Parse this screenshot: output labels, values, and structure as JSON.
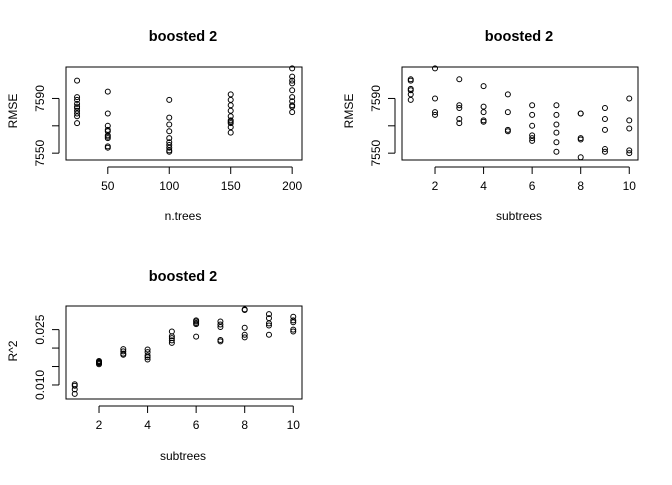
{
  "chart_data": [
    {
      "type": "scatter",
      "title": "boosted 2",
      "xlabel": "n.trees",
      "ylabel": "RMSE",
      "xlim": [
        16,
        208
      ],
      "ylim": [
        7545,
        7613
      ],
      "xticks": [
        50,
        100,
        150,
        200
      ],
      "yticks": [
        7550,
        7570,
        7590
      ],
      "ytick_labels": [
        "7550",
        "",
        "7590"
      ],
      "series": [
        {
          "x": [
            25,
            25,
            25,
            25,
            25,
            25,
            25,
            25,
            25,
            25,
            50,
            50,
            50,
            50,
            50,
            50,
            50,
            50,
            50,
            50,
            100,
            100,
            100,
            100,
            100,
            100,
            100,
            100,
            100,
            100,
            150,
            150,
            150,
            150,
            150,
            150,
            150,
            150,
            150,
            150,
            200,
            200,
            200,
            200,
            200,
            200,
            200,
            200,
            200,
            200
          ],
          "y": [
            7603,
            7591,
            7586,
            7584,
            7581,
            7579,
            7577,
            7572,
            7589,
            7583,
            7595,
            7579,
            7570,
            7566,
            7563,
            7561,
            7555,
            7554,
            7562,
            7567,
            7589,
            7576,
            7571,
            7566,
            7561,
            7556,
            7554,
            7551,
            7558,
            7552,
            7593,
            7589,
            7585,
            7581,
            7577,
            7573,
            7569,
            7565,
            7572,
            7574,
            7612,
            7606,
            7601,
            7596,
            7591,
            7588,
            7584,
            7580,
            7603,
            7585
          ]
        }
      ]
    },
    {
      "type": "scatter",
      "title": "boosted 2",
      "xlabel": "subtrees",
      "ylabel": "RMSE",
      "xlim": [
        0.64,
        10.36
      ],
      "ylim": [
        7545,
        7613
      ],
      "xticks": [
        2,
        4,
        6,
        8,
        10
      ],
      "yticks": [
        7550,
        7570,
        7590
      ],
      "ytick_labels": [
        "7550",
        "",
        "7590"
      ],
      "series": [
        {
          "x": [
            1,
            1,
            1,
            1,
            1,
            1,
            2,
            2,
            2,
            2,
            3,
            3,
            3,
            3,
            3,
            4,
            4,
            4,
            4,
            4,
            5,
            5,
            5,
            5,
            6,
            6,
            6,
            6,
            6,
            6,
            7,
            7,
            7,
            7,
            7,
            7,
            8,
            8,
            8,
            8,
            8,
            9,
            9,
            9,
            9,
            9,
            10,
            10,
            10,
            10,
            10
          ],
          "y": [
            7603,
            7597,
            7593,
            7589,
            7604,
            7596,
            7612,
            7590,
            7580,
            7578,
            7604,
            7585,
            7583,
            7575,
            7572,
            7599,
            7584,
            7580,
            7574,
            7573,
            7593,
            7580,
            7567,
            7566,
            7585,
            7578,
            7570,
            7563,
            7559,
            7561,
            7585,
            7578,
            7571,
            7565,
            7558,
            7551,
            7579,
            7579,
            7561,
            7560,
            7547,
            7583,
            7575,
            7567,
            7553,
            7551,
            7590,
            7574,
            7568,
            7552,
            7550
          ]
        }
      ]
    },
    {
      "type": "scatter",
      "title": "boosted 2",
      "xlabel": "subtrees",
      "ylabel": "R^2",
      "xlim": [
        0.64,
        10.36
      ],
      "ylim": [
        0.0062,
        0.0314
      ],
      "xticks": [
        2,
        4,
        6,
        8,
        10
      ],
      "yticks": [
        0.01,
        0.015,
        0.02,
        0.025
      ],
      "ytick_labels": [
        "0.010",
        "",
        "",
        "0.025"
      ],
      "series": [
        {
          "x": [
            1,
            1,
            1,
            1,
            2,
            2,
            2,
            2,
            2,
            3,
            3,
            3,
            3,
            4,
            4,
            4,
            4,
            4,
            5,
            5,
            5,
            5,
            5,
            6,
            6,
            6,
            6,
            6,
            7,
            7,
            7,
            7,
            7,
            8,
            8,
            8,
            8,
            8,
            9,
            9,
            9,
            9,
            9,
            10,
            10,
            10,
            10,
            10
          ],
          "y": [
            0.0102,
            0.0098,
            0.0088,
            0.0076,
            0.0165,
            0.0163,
            0.0161,
            0.0159,
            0.0156,
            0.0197,
            0.0191,
            0.0185,
            0.0182,
            0.0196,
            0.0189,
            0.018,
            0.0175,
            0.0169,
            0.0245,
            0.0232,
            0.0227,
            0.0221,
            0.0214,
            0.0275,
            0.0272,
            0.0268,
            0.0265,
            0.0231,
            0.0272,
            0.0264,
            0.0257,
            0.0222,
            0.0218,
            0.0305,
            0.0303,
            0.0255,
            0.0236,
            0.0229,
            0.0292,
            0.0281,
            0.0267,
            0.0261,
            0.0236,
            0.0285,
            0.0275,
            0.027,
            0.025,
            0.0245
          ]
        }
      ]
    }
  ]
}
